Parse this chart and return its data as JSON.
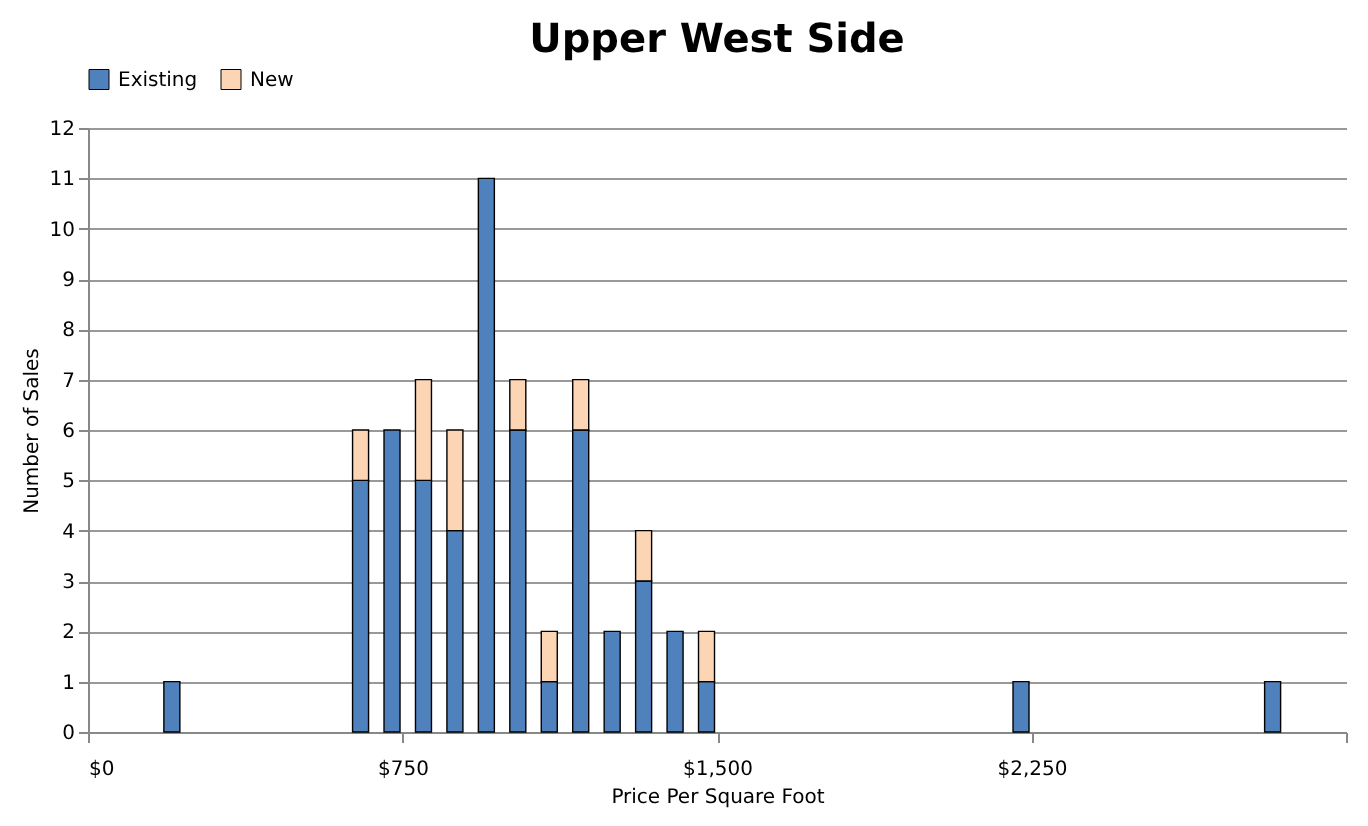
{
  "chart_data": {
    "type": "bar",
    "title": "Upper West Side",
    "xlabel": "Price Per Square Foot",
    "ylabel": "Number of Sales",
    "x": [
      200,
      650,
      725,
      800,
      875,
      950,
      1025,
      1100,
      1175,
      1250,
      1325,
      1400,
      1475,
      2225,
      2825
    ],
    "series": [
      {
        "name": "Existing",
        "color": "#4f81bd",
        "values": [
          1,
          5,
          6,
          5,
          4,
          11,
          6,
          1,
          6,
          2,
          3,
          2,
          1,
          1,
          1
        ]
      },
      {
        "name": "New",
        "color": "#fcd5b5",
        "values": [
          0,
          1,
          0,
          2,
          2,
          0,
          1,
          1,
          1,
          0,
          1,
          0,
          1,
          0,
          0
        ]
      }
    ],
    "stacked": true,
    "xlim": [
      0,
      3000
    ],
    "xticks": [
      {
        "value": 0,
        "label": "$0"
      },
      {
        "value": 750,
        "label": "$750"
      },
      {
        "value": 1500,
        "label": "$1,500"
      },
      {
        "value": 2250,
        "label": "$2,250"
      },
      {
        "value": 3000,
        "label": null
      }
    ],
    "ylim": [
      0,
      12
    ],
    "yticks": [
      0,
      1,
      2,
      3,
      4,
      5,
      6,
      7,
      8,
      9,
      10,
      11,
      12
    ],
    "grid": "y",
    "legend": "top"
  }
}
